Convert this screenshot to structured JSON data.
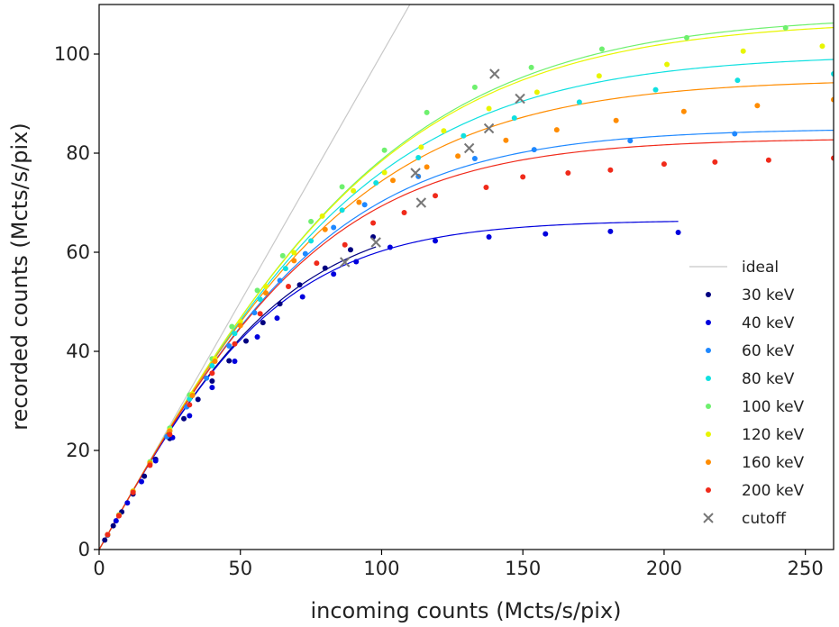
{
  "chart_data": {
    "type": "scatter",
    "xlabel": "incoming counts (Mcts/s/pix)",
    "ylabel": "recorded counts (Mcts/s/pix)",
    "xlim": [
      0,
      260
    ],
    "ylim": [
      0,
      110
    ],
    "x_ticks": [
      0,
      50,
      100,
      150,
      200,
      250
    ],
    "y_ticks": [
      0,
      20,
      40,
      60,
      80,
      100
    ],
    "grid": false,
    "legend_position": "lower-right",
    "ideal": {
      "name": "ideal",
      "color": "#c8c8c8",
      "x": [
        0,
        110
      ],
      "y": [
        0,
        110
      ]
    },
    "cutoff": {
      "name": "cutoff",
      "color": "#777777",
      "x": [
        87,
        98,
        114,
        112,
        131,
        138,
        149,
        140
      ],
      "y": [
        58,
        62,
        70,
        76,
        81,
        85,
        91,
        96
      ]
    },
    "series": [
      {
        "name": "30 keV",
        "color": "#000080",
        "ymax": 68.5,
        "fit_xmax": 98,
        "x": [
          2,
          5,
          8,
          12,
          16,
          20,
          25,
          30,
          35,
          40,
          46,
          52,
          58,
          64,
          71,
          80,
          89,
          97
        ],
        "y": [
          1.9,
          4.8,
          7.6,
          11.2,
          14.8,
          18.2,
          22.4,
          26.4,
          30.3,
          34.0,
          38.1,
          42.1,
          45.8,
          49.6,
          53.4,
          56.8,
          60.5,
          63.1
        ]
      },
      {
        "name": "40 keV",
        "color": "#0000dd",
        "ymax": 66.5,
        "fit_xmax": 205,
        "x": [
          3,
          6,
          10,
          15,
          20,
          26,
          32,
          40,
          48,
          56,
          63,
          72,
          83,
          91,
          103,
          119,
          138,
          158,
          181,
          205
        ],
        "y": [
          2.9,
          5.8,
          9.4,
          13.7,
          17.9,
          22.6,
          27.0,
          32.7,
          38.0,
          42.9,
          46.7,
          51.0,
          55.6,
          58.1,
          61.0,
          62.3,
          63.1,
          63.7,
          64.2,
          64.0
        ]
      },
      {
        "name": "60 keV",
        "color": "#1e88ff",
        "ymax": 85,
        "fit_xmax": 260,
        "x": [
          3,
          7,
          12,
          18,
          24,
          31,
          38,
          46,
          55,
          64,
          73,
          83,
          94,
          113,
          133,
          154,
          188,
          225,
          262
        ],
        "y": [
          2.9,
          6.9,
          11.6,
          17.3,
          22.8,
          28.8,
          34.6,
          41.1,
          47.8,
          54.3,
          59.7,
          65.0,
          69.6,
          75.3,
          78.9,
          80.7,
          82.5,
          83.9,
          84.7
        ]
      },
      {
        "name": "80 keV",
        "color": "#10e0e0",
        "ymax": 100,
        "fit_xmax": 260,
        "x": [
          3,
          7,
          12,
          18,
          25,
          32,
          40,
          48,
          57,
          66,
          75,
          86,
          98,
          113,
          129,
          147,
          170,
          197,
          226,
          260
        ],
        "y": [
          3.0,
          6.9,
          11.7,
          17.5,
          23.9,
          30.4,
          37.1,
          43.6,
          50.5,
          56.7,
          62.3,
          68.5,
          74.0,
          79.1,
          83.5,
          87.1,
          90.3,
          92.8,
          94.7,
          96.0
        ]
      },
      {
        "name": "100 keV",
        "color": "#6ef06e",
        "ymax": 108,
        "fit_xmax": 260,
        "x": [
          3,
          7,
          12,
          18,
          25,
          32,
          40,
          47,
          56,
          65,
          75,
          86,
          101,
          116,
          133,
          153,
          178,
          208,
          243
        ],
        "y": [
          3.0,
          7.0,
          11.8,
          17.7,
          24.5,
          31.2,
          38.5,
          45.0,
          52.3,
          59.3,
          66.2,
          73.2,
          80.6,
          88.2,
          93.3,
          97.3,
          101.0,
          103.3,
          105.3
        ]
      },
      {
        "name": "120 keV",
        "color": "#e8f500",
        "ymax": 107,
        "fit_xmax": 260,
        "x": [
          3,
          7,
          12,
          18,
          25,
          33,
          41,
          50,
          59,
          69,
          79,
          90,
          101,
          114,
          122,
          138,
          155,
          177,
          201,
          228,
          256
        ],
        "y": [
          3.0,
          6.9,
          11.8,
          17.5,
          24.1,
          31.4,
          38.5,
          46.0,
          53.1,
          59.9,
          67.3,
          72.4,
          76.1,
          81.2,
          84.5,
          89.0,
          92.3,
          95.6,
          97.9,
          100.6,
          101.6
        ]
      },
      {
        "name": "160 keV",
        "color": "#ff8c00",
        "ymax": 95,
        "fit_xmax": 260,
        "x": [
          3,
          7,
          12,
          18,
          25,
          33,
          41,
          50,
          59,
          69,
          80,
          92,
          104,
          116,
          127,
          144,
          162,
          183,
          207,
          233,
          260
        ],
        "y": [
          3.0,
          6.9,
          11.7,
          17.4,
          23.9,
          31.1,
          38.0,
          45.2,
          51.8,
          58.3,
          64.6,
          70.1,
          74.5,
          77.2,
          79.4,
          82.6,
          84.7,
          86.6,
          88.4,
          89.6,
          90.8
        ]
      },
      {
        "name": "200 keV",
        "color": "#f02a1a",
        "ymax": 83,
        "fit_xmax": 260,
        "x": [
          3,
          7,
          12,
          18,
          25,
          32,
          40,
          48,
          57,
          67,
          77,
          87,
          97,
          108,
          119,
          137,
          150,
          166,
          181,
          200,
          218,
          237,
          260
        ],
        "y": [
          3.0,
          6.8,
          11.5,
          17.0,
          23.2,
          29.2,
          35.6,
          41.5,
          47.6,
          53.1,
          57.8,
          61.5,
          65.9,
          68.0,
          71.4,
          73.1,
          75.2,
          76.0,
          76.6,
          77.8,
          78.2,
          78.6,
          79.0
        ]
      }
    ]
  }
}
